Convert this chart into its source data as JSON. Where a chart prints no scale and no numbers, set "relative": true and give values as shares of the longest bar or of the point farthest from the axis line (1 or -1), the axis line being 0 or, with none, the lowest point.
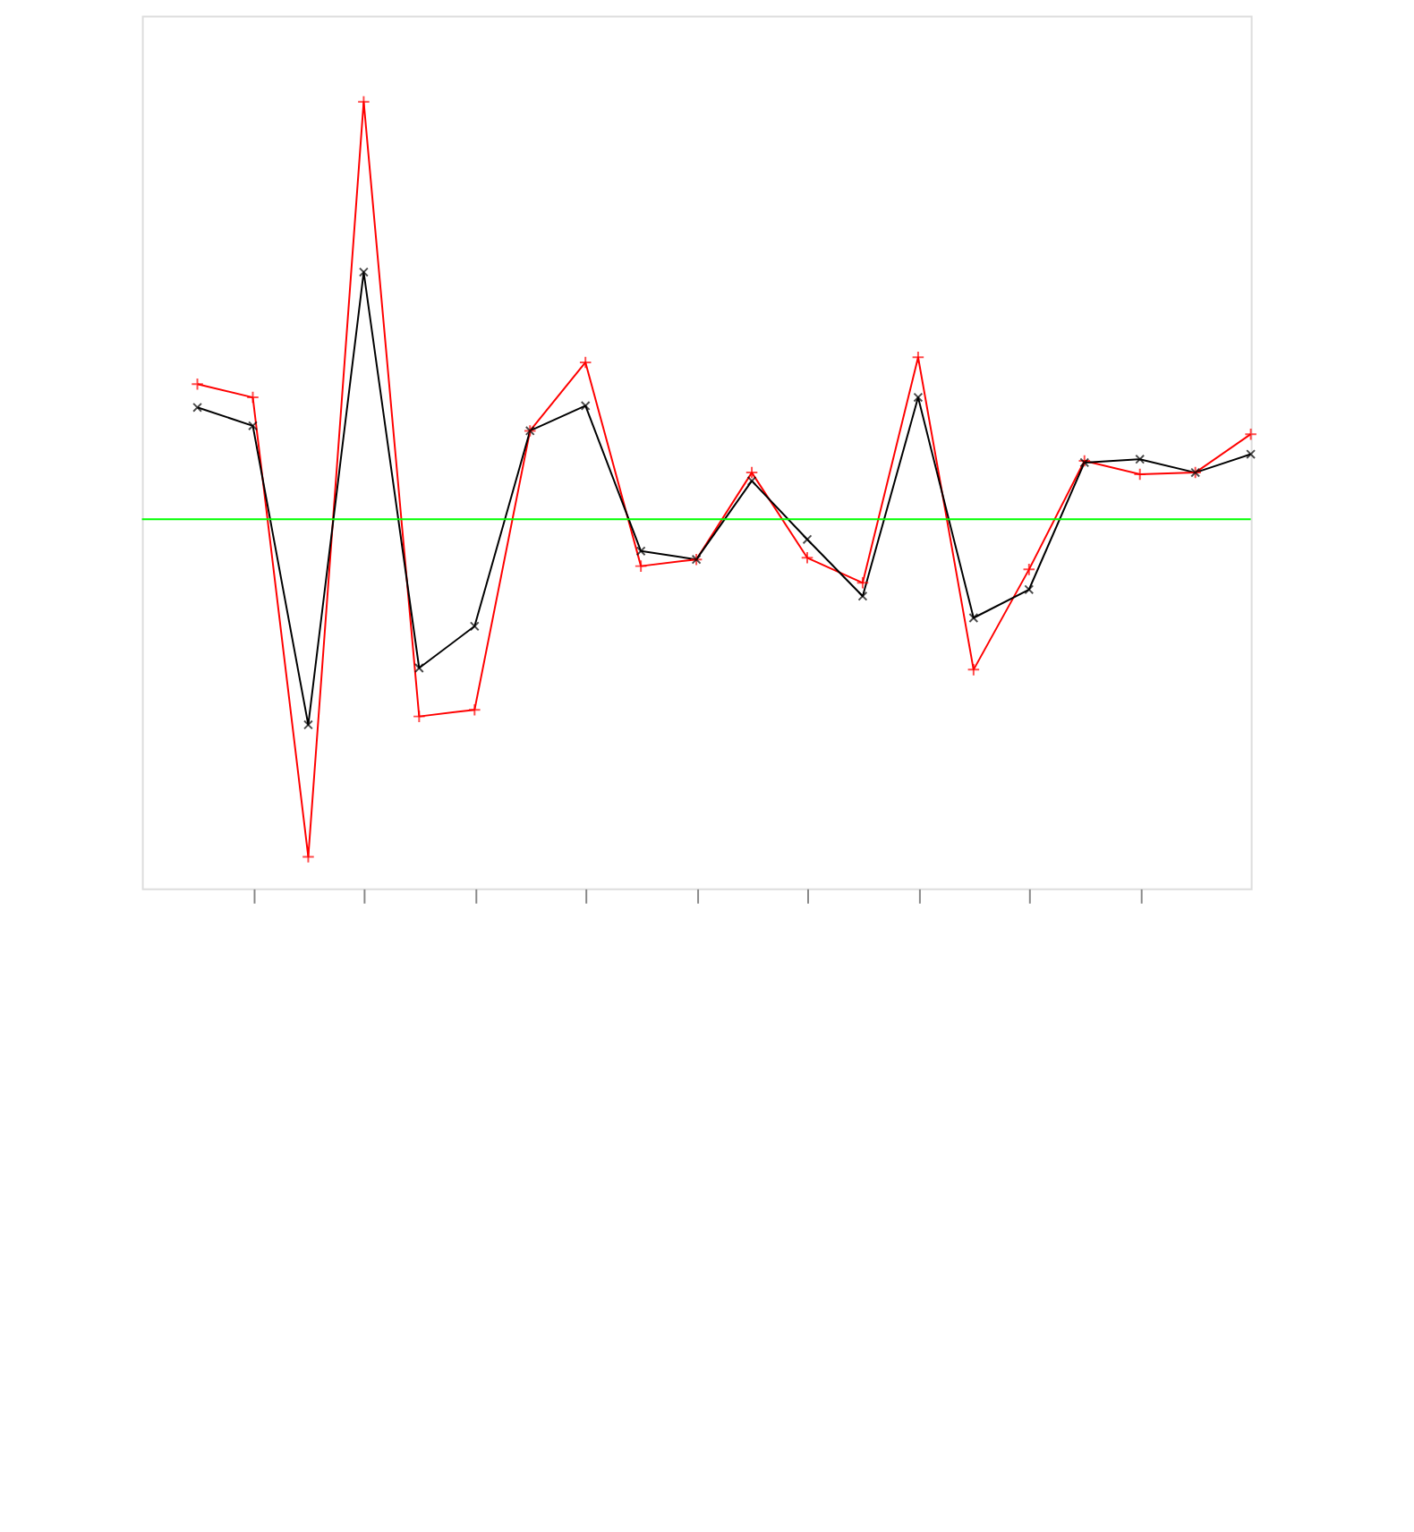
{
  "chart_data": {
    "type": "line",
    "relative": true,
    "categories": [
      null,
      null,
      null,
      null,
      null,
      null,
      null,
      null,
      null,
      null,
      null,
      null,
      null,
      null,
      null,
      null,
      null,
      null,
      null,
      null
    ],
    "series": [
      {
        "color": "#ff0000",
        "values": [
          0.324,
          0.292,
          -0.808,
          1.0,
          -0.472,
          -0.456,
          0.212,
          0.376,
          -0.112,
          -0.096,
          0.112,
          -0.092,
          -0.152,
          0.388,
          -0.36,
          -0.12,
          0.14,
          0.108,
          0.112,
          0.204
        ]
      },
      {
        "color": "#000000",
        "values": [
          0.268,
          0.224,
          -0.492,
          0.592,
          -0.356,
          -0.256,
          0.212,
          0.272,
          -0.076,
          -0.096,
          0.092,
          -0.048,
          -0.184,
          0.292,
          -0.236,
          -0.168,
          0.136,
          0.144,
          0.112,
          0.156
        ]
      }
    ],
    "ref_lines": [
      {
        "axis": "y",
        "value": 0,
        "color": "#00ff00"
      }
    ],
    "marker": "cross",
    "line_style": "solid",
    "grid": false
  }
}
